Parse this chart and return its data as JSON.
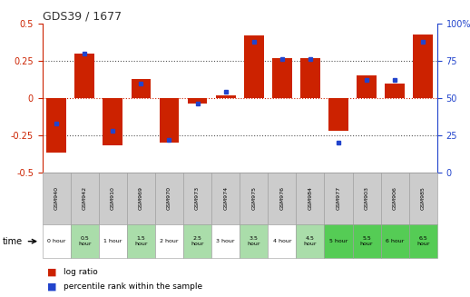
{
  "title": "GDS39 / 1677",
  "samples": [
    "GSM940",
    "GSM942",
    "GSM910",
    "GSM969",
    "GSM970",
    "GSM973",
    "GSM974",
    "GSM975",
    "GSM976",
    "GSM984",
    "GSM977",
    "GSM903",
    "GSM906",
    "GSM985"
  ],
  "time_labels": [
    "0 hour",
    "0.5\nhour",
    "1 hour",
    "1.5\nhour",
    "2 hour",
    "2.5\nhour",
    "3 hour",
    "3.5\nhour",
    "4 hour",
    "4.5\nhour",
    "5 hour",
    "5.5\nhour",
    "6 hour",
    "6.5\nhour"
  ],
  "log_ratio": [
    -0.37,
    0.3,
    -0.32,
    0.13,
    -0.3,
    -0.04,
    0.02,
    0.42,
    0.27,
    0.27,
    -0.22,
    0.15,
    0.1,
    0.43
  ],
  "percentile": [
    33,
    80,
    28,
    60,
    22,
    46,
    54,
    88,
    76,
    76,
    20,
    62,
    62,
    88
  ],
  "ylim_left": [
    -0.5,
    0.5
  ],
  "ylim_right": [
    0,
    100
  ],
  "yticks_left": [
    -0.5,
    -0.25,
    0,
    0.25,
    0.5
  ],
  "yticks_right": [
    0,
    25,
    50,
    75,
    100
  ],
  "bar_color": "#cc2200",
  "dot_color": "#2244cc",
  "title_color": "#333333",
  "left_tick_color": "#cc2200",
  "right_tick_color": "#2244cc",
  "hline_color": "#cc2200",
  "grid_color": "#555555",
  "time_bg_colors": [
    "#ffffff",
    "#aaddaa",
    "#ffffff",
    "#aaddaa",
    "#ffffff",
    "#aaddaa",
    "#ffffff",
    "#aaddaa",
    "#ffffff",
    "#aaddaa",
    "#55cc55",
    "#55cc55",
    "#55cc55",
    "#55cc55"
  ],
  "sample_bg_color": "#cccccc",
  "legend_log_ratio": "log ratio",
  "legend_percentile": "percentile rank within the sample",
  "fig_width": 5.18,
  "fig_height": 3.27,
  "dpi": 100
}
